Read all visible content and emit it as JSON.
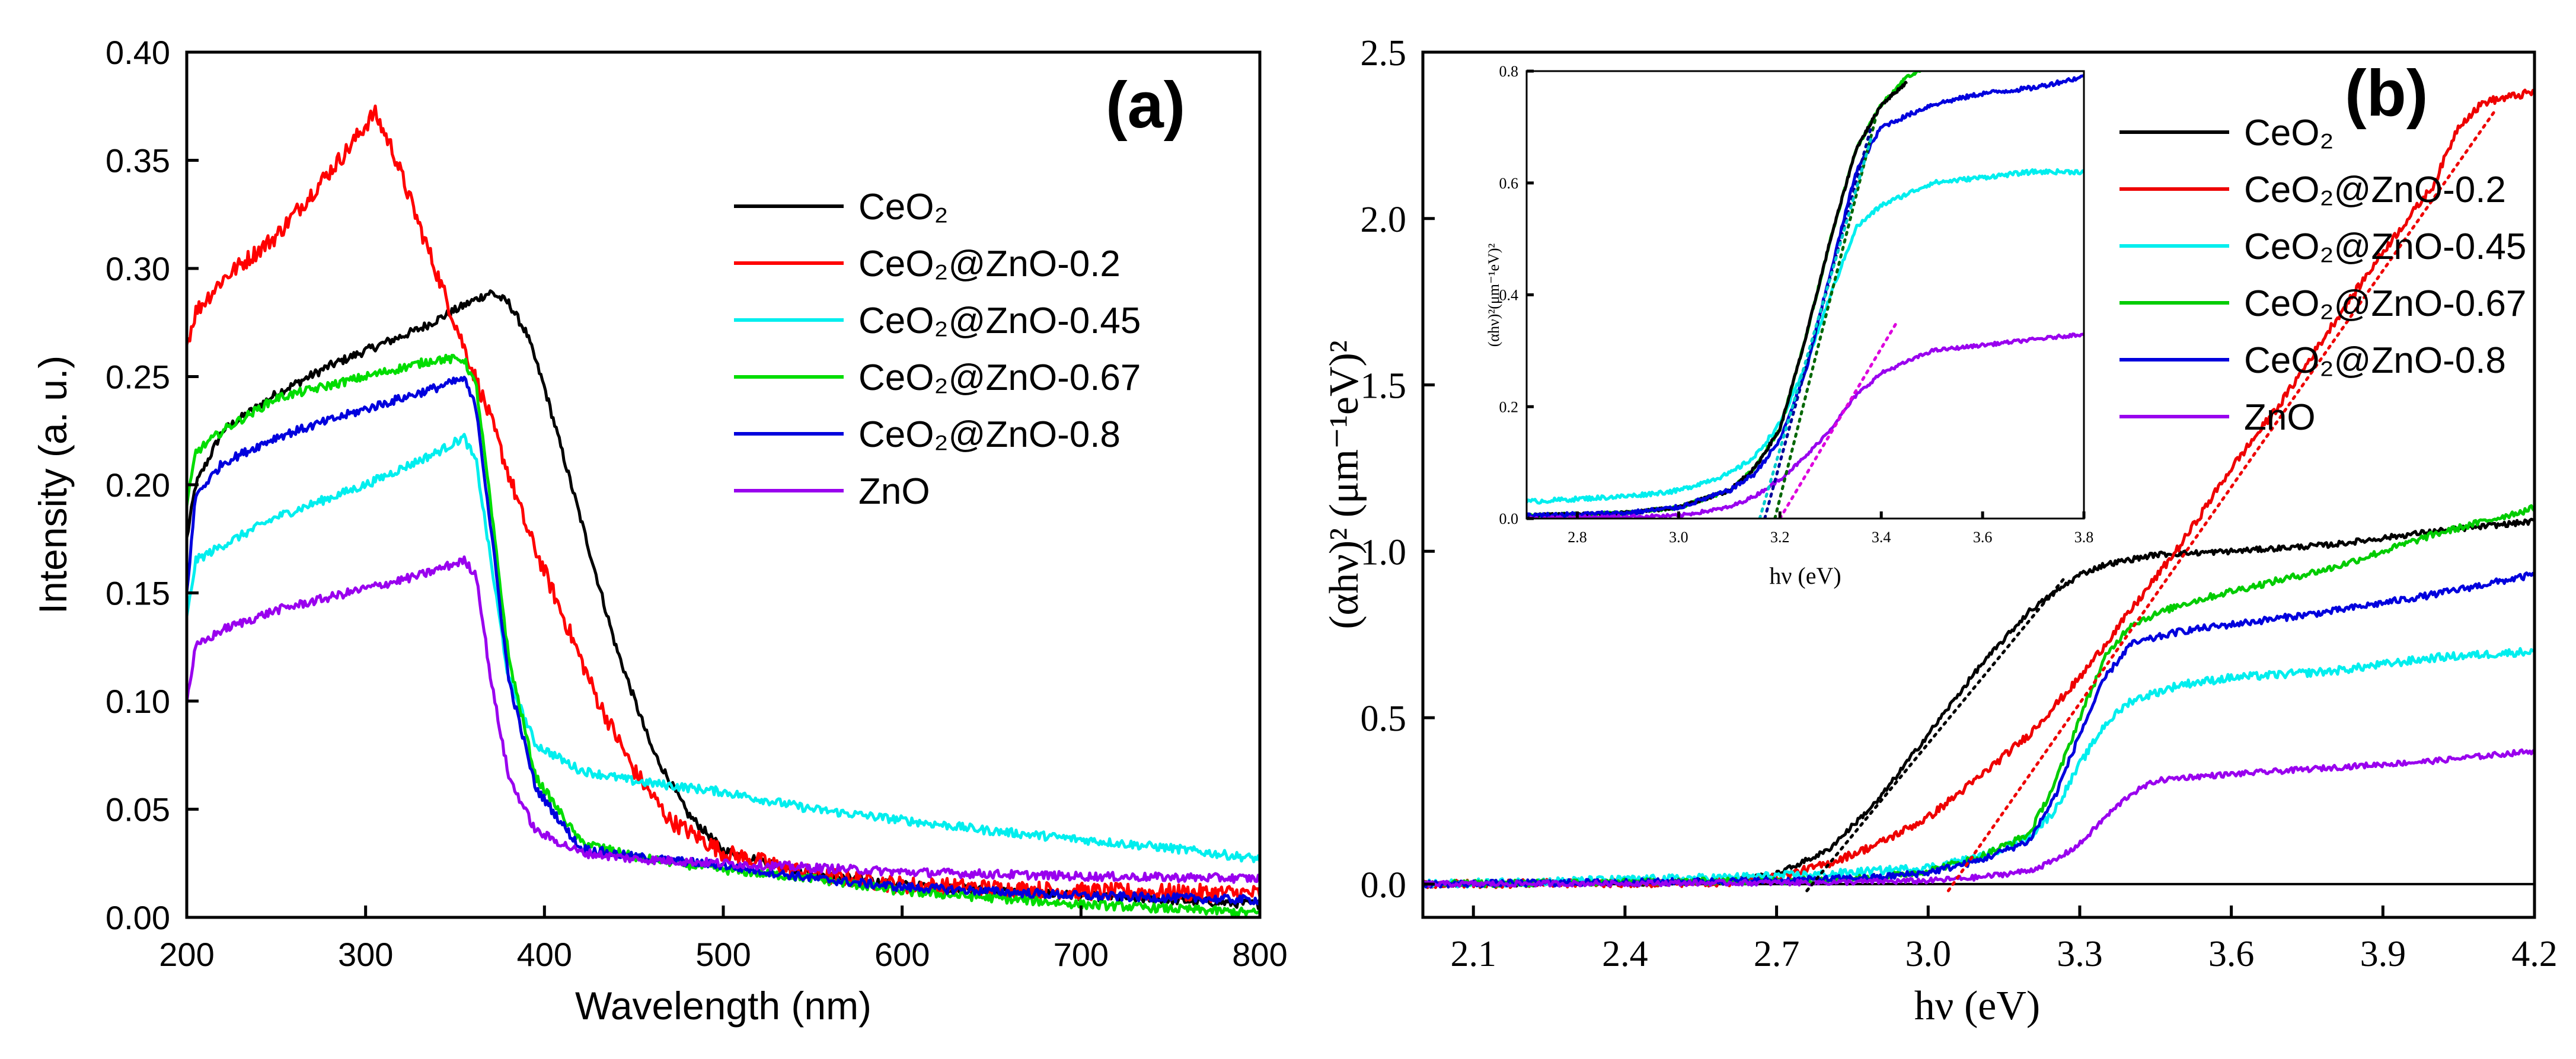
{
  "chart_data": [
    {
      "id": "a",
      "type": "line",
      "panel_label": "(a)",
      "xlabel": "Wavelength (nm)",
      "ylabel": "Intensity (a. u.)",
      "xlim": [
        200,
        800
      ],
      "ylim": [
        0,
        0.4
      ],
      "xticks": [
        200,
        300,
        400,
        500,
        600,
        700,
        800
      ],
      "yticks": [
        0.0,
        0.05,
        0.1,
        0.15,
        0.2,
        0.25,
        0.3,
        0.35,
        0.4
      ],
      "xtick_labels": [
        "200",
        "300",
        "400",
        "500",
        "600",
        "700",
        "800"
      ],
      "ytick_labels": [
        "0.00",
        "0.05",
        "0.10",
        "0.15",
        "0.20",
        "0.25",
        "0.30",
        "0.35",
        "0.40"
      ],
      "legend_position": "top-right",
      "series": [
        {
          "name": "CeO₂",
          "color": "#000000",
          "noise": 0.002,
          "x": [
            200,
            205,
            220,
            250,
            280,
            300,
            330,
            360,
            370,
            380,
            390,
            400,
            420,
            440,
            460,
            480,
            500,
            550,
            600,
            700,
            800
          ],
          "y": [
            0.175,
            0.2,
            0.225,
            0.242,
            0.255,
            0.262,
            0.272,
            0.285,
            0.289,
            0.284,
            0.27,
            0.245,
            0.185,
            0.125,
            0.078,
            0.048,
            0.031,
            0.02,
            0.015,
            0.01,
            0.006
          ]
        },
        {
          "name": "CeO₂@ZnO-0.2",
          "color": "#ff0000",
          "noise": 0.004,
          "x": [
            200,
            205,
            220,
            250,
            270,
            290,
            305,
            315,
            330,
            350,
            370,
            390,
            410,
            430,
            450,
            470,
            500,
            550,
            600,
            700,
            800
          ],
          "y": [
            0.265,
            0.28,
            0.295,
            0.315,
            0.335,
            0.355,
            0.372,
            0.355,
            0.32,
            0.275,
            0.23,
            0.18,
            0.14,
            0.1,
            0.068,
            0.045,
            0.03,
            0.02,
            0.015,
            0.012,
            0.011
          ]
        },
        {
          "name": "CeO₂@ZnO-0.45",
          "color": "#00eeee",
          "noise": 0.002,
          "x": [
            200,
            205,
            220,
            250,
            300,
            340,
            355,
            362,
            370,
            380,
            395,
            420,
            450,
            500,
            550,
            600,
            650,
            700,
            750,
            800
          ],
          "y": [
            0.138,
            0.165,
            0.172,
            0.185,
            0.2,
            0.215,
            0.222,
            0.21,
            0.165,
            0.11,
            0.08,
            0.068,
            0.063,
            0.058,
            0.05,
            0.045,
            0.04,
            0.036,
            0.032,
            0.027
          ]
        },
        {
          "name": "CeO₂@ZnO-0.67",
          "color": "#00dd00",
          "noise": 0.002,
          "x": [
            200,
            205,
            220,
            250,
            300,
            340,
            355,
            362,
            370,
            380,
            395,
            420,
            450,
            500,
            550,
            600,
            700,
            800
          ],
          "y": [
            0.19,
            0.215,
            0.225,
            0.24,
            0.25,
            0.258,
            0.258,
            0.245,
            0.19,
            0.12,
            0.065,
            0.035,
            0.028,
            0.022,
            0.018,
            0.012,
            0.006,
            0.002
          ]
        },
        {
          "name": "CeO₂@ZnO-0.8",
          "color": "#0000dd",
          "noise": 0.002,
          "x": [
            200,
            205,
            220,
            250,
            300,
            340,
            355,
            362,
            370,
            380,
            395,
            420,
            450,
            500,
            550,
            600,
            700,
            800
          ],
          "y": [
            0.15,
            0.195,
            0.21,
            0.222,
            0.235,
            0.245,
            0.249,
            0.235,
            0.18,
            0.11,
            0.06,
            0.032,
            0.028,
            0.024,
            0.018,
            0.014,
            0.01,
            0.008
          ]
        },
        {
          "name": "ZnO",
          "color": "#9900ee",
          "noise": 0.002,
          "x": [
            200,
            205,
            220,
            250,
            300,
            330,
            355,
            362,
            370,
            380,
            395,
            420,
            450,
            500,
            600,
            700,
            800
          ],
          "y": [
            0.1,
            0.125,
            0.133,
            0.142,
            0.152,
            0.158,
            0.165,
            0.158,
            0.11,
            0.065,
            0.04,
            0.03,
            0.027,
            0.025,
            0.021,
            0.019,
            0.018
          ]
        }
      ]
    },
    {
      "id": "b",
      "type": "line",
      "panel_label": "(b)",
      "xlabel": "hν (eV)",
      "ylabel": "(αhν)² (μm⁻¹eV)²",
      "xlim": [
        2.0,
        4.2
      ],
      "ylim": [
        -0.1,
        2.5
      ],
      "xticks": [
        2.1,
        2.4,
        2.7,
        3.0,
        3.3,
        3.6,
        3.9,
        4.2
      ],
      "yticks": [
        0.0,
        0.5,
        1.0,
        1.5,
        2.0,
        2.5
      ],
      "xtick_labels": [
        "2.1",
        "2.4",
        "2.7",
        "3.0",
        "3.3",
        "3.6",
        "3.9",
        "4.2"
      ],
      "ytick_labels": [
        "0.0",
        "0.5",
        "1.0",
        "1.5",
        "2.0",
        "2.5"
      ],
      "legend_position": "top-right",
      "baseline": 0.0,
      "series": [
        {
          "name": "CeO₂",
          "color": "#000000",
          "noise": 0.008,
          "x": [
            2.0,
            2.5,
            2.6,
            2.7,
            2.8,
            2.9,
            3.0,
            3.1,
            3.2,
            3.3,
            3.35,
            3.45,
            3.6,
            3.8,
            4.0,
            4.2
          ],
          "y": [
            0.0,
            0.005,
            0.01,
            0.03,
            0.1,
            0.25,
            0.45,
            0.65,
            0.82,
            0.93,
            0.96,
            0.99,
            1.0,
            1.02,
            1.06,
            1.09
          ]
        },
        {
          "name": "CeO₂@ZnO-0.2",
          "color": "#ee0000",
          "noise": 0.012,
          "x": [
            2.0,
            2.6,
            2.7,
            2.8,
            2.9,
            3.0,
            3.1,
            3.2,
            3.3,
            3.4,
            3.5,
            3.6,
            3.7,
            3.8,
            3.9,
            4.0,
            4.05,
            4.1,
            4.2
          ],
          "y": [
            0.0,
            0.005,
            0.02,
            0.06,
            0.12,
            0.2,
            0.32,
            0.45,
            0.62,
            0.82,
            1.02,
            1.25,
            1.45,
            1.68,
            1.9,
            2.1,
            2.28,
            2.35,
            2.38
          ]
        },
        {
          "name": "CeO₂@ZnO-0.45",
          "color": "#00eeee",
          "noise": 0.012,
          "x": [
            2.0,
            2.6,
            2.8,
            3.0,
            3.1,
            3.2,
            3.25,
            3.3,
            3.35,
            3.4,
            3.5,
            3.6,
            3.8,
            4.0,
            4.2
          ],
          "y": [
            0.0,
            0.02,
            0.03,
            0.05,
            0.08,
            0.14,
            0.22,
            0.36,
            0.48,
            0.55,
            0.6,
            0.62,
            0.64,
            0.68,
            0.7
          ]
        },
        {
          "name": "CeO₂@ZnO-0.67",
          "color": "#00cc00",
          "noise": 0.01,
          "x": [
            2.0,
            2.7,
            2.9,
            3.0,
            3.1,
            3.2,
            3.25,
            3.3,
            3.35,
            3.4,
            3.5,
            3.6,
            3.8,
            4.0,
            4.2
          ],
          "y": [
            0.0,
            0.01,
            0.02,
            0.04,
            0.08,
            0.15,
            0.3,
            0.5,
            0.68,
            0.78,
            0.84,
            0.88,
            0.95,
            1.05,
            1.13
          ]
        },
        {
          "name": "CeO₂@ZnO-0.8",
          "color": "#0000dd",
          "noise": 0.01,
          "x": [
            2.0,
            2.7,
            2.9,
            3.0,
            3.1,
            3.2,
            3.25,
            3.3,
            3.35,
            3.4,
            3.5,
            3.6,
            3.8,
            4.0,
            4.2
          ],
          "y": [
            0.0,
            0.01,
            0.02,
            0.035,
            0.07,
            0.13,
            0.26,
            0.45,
            0.62,
            0.72,
            0.76,
            0.78,
            0.82,
            0.87,
            0.93
          ]
        },
        {
          "name": "ZnO",
          "color": "#9900ee",
          "noise": 0.008,
          "x": [
            2.0,
            2.8,
            3.0,
            3.1,
            3.2,
            3.25,
            3.3,
            3.35,
            3.4,
            3.45,
            3.5,
            3.6,
            3.8,
            4.0,
            4.2
          ],
          "y": [
            0.0,
            0.005,
            0.01,
            0.02,
            0.04,
            0.07,
            0.12,
            0.2,
            0.27,
            0.31,
            0.32,
            0.33,
            0.35,
            0.37,
            0.4
          ]
        }
      ],
      "fit_lines": [
        {
          "color": "#000000",
          "x": [
            2.76,
            3.27
          ],
          "y": [
            -0.02,
            0.92
          ]
        },
        {
          "color": "#ee0000",
          "x": [
            3.04,
            4.12
          ],
          "y": [
            -0.02,
            2.32
          ]
        }
      ],
      "inset": {
        "xlabel": "hν (eV)",
        "ylabel": "(αhν)²(μm⁻¹eV)²",
        "xlim": [
          2.7,
          3.8
        ],
        "ylim": [
          0.0,
          0.8
        ],
        "xticks": [
          2.8,
          3.0,
          3.2,
          3.4,
          3.6,
          3.8
        ],
        "yticks": [
          0.0,
          0.2,
          0.4,
          0.6,
          0.8
        ],
        "xtick_labels": [
          "2.8",
          "3.0",
          "3.2",
          "3.4",
          "3.6",
          "3.8"
        ],
        "ytick_labels": [
          "0.0",
          "0.2",
          "0.4",
          "0.6",
          "0.8"
        ],
        "series": [
          {
            "color": "#00eeee",
            "noise": 0.004,
            "x": [
              2.7,
              2.9,
              3.0,
              3.1,
              3.15,
              3.2,
              3.25,
              3.3,
              3.35,
              3.4,
              3.45,
              3.5,
              3.6,
              3.7,
              3.8
            ],
            "y": [
              0.03,
              0.04,
              0.05,
              0.08,
              0.11,
              0.17,
              0.27,
              0.4,
              0.52,
              0.56,
              0.58,
              0.6,
              0.61,
              0.62,
              0.62
            ]
          },
          {
            "color": "#00cc00",
            "noise": 0.003,
            "x": [
              2.7,
              2.9,
              3.0,
              3.1,
              3.15,
              3.2,
              3.25,
              3.3,
              3.35,
              3.4,
              3.45,
              3.5
            ],
            "y": [
              0.005,
              0.01,
              0.02,
              0.05,
              0.09,
              0.16,
              0.32,
              0.5,
              0.66,
              0.74,
              0.79,
              0.81
            ]
          },
          {
            "color": "#000000",
            "noise": 0.003,
            "x": [
              2.7,
              2.9,
              3.0,
              3.1,
              3.15,
              3.2,
              3.25,
              3.3,
              3.35,
              3.4,
              3.45
            ],
            "y": [
              0.005,
              0.01,
              0.02,
              0.05,
              0.09,
              0.16,
              0.32,
              0.5,
              0.66,
              0.74,
              0.78
            ]
          },
          {
            "color": "#0000dd",
            "noise": 0.004,
            "x": [
              2.7,
              2.9,
              3.0,
              3.1,
              3.15,
              3.2,
              3.25,
              3.3,
              3.35,
              3.4,
              3.5,
              3.6,
              3.7,
              3.8
            ],
            "y": [
              0.005,
              0.01,
              0.02,
              0.05,
              0.08,
              0.14,
              0.26,
              0.44,
              0.62,
              0.7,
              0.74,
              0.76,
              0.77,
              0.79
            ]
          },
          {
            "color": "#9900ee",
            "noise": 0.003,
            "x": [
              2.7,
              3.0,
              3.1,
              3.15,
              3.2,
              3.25,
              3.3,
              3.35,
              3.4,
              3.45,
              3.5,
              3.6,
              3.7,
              3.8
            ],
            "y": [
              0.0,
              0.005,
              0.02,
              0.04,
              0.07,
              0.11,
              0.16,
              0.22,
              0.26,
              0.28,
              0.3,
              0.31,
              0.32,
              0.33
            ]
          }
        ],
        "fit_lines": [
          {
            "color": "#006600",
            "x": [
              3.19,
              3.39
            ],
            "y": [
              0.0,
              0.72
            ]
          },
          {
            "color": "#000099",
            "x": [
              3.17,
              3.38
            ],
            "y": [
              0.0,
              0.7
            ]
          },
          {
            "color": "#00cccc",
            "x": [
              3.16,
              3.38
            ],
            "y": [
              0.0,
              0.68
            ]
          },
          {
            "color": "#dd00dd",
            "x": [
              3.2,
              3.43
            ],
            "y": [
              0.0,
              0.35
            ]
          }
        ]
      }
    }
  ]
}
